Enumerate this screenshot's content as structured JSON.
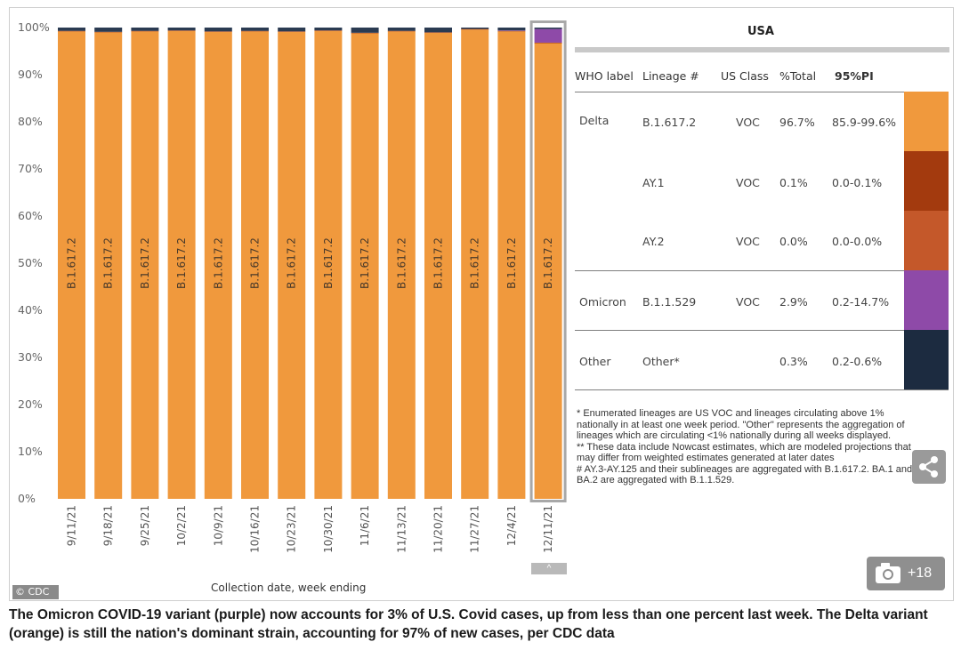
{
  "chart_data": {
    "type": "bar",
    "stacked": true,
    "categories": [
      "9/11/21",
      "9/18/21",
      "9/25/21",
      "10/2/21",
      "10/9/21",
      "10/16/21",
      "10/23/21",
      "10/30/21",
      "11/6/21",
      "11/13/21",
      "11/20/21",
      "11/27/21",
      "12/4/21",
      "12/11/21"
    ],
    "series": [
      {
        "name": "B.1.617.2",
        "color": "#f0993d",
        "values": [
          99.2,
          99.0,
          99.2,
          99.3,
          99.1,
          99.2,
          99.1,
          99.3,
          98.8,
          99.2,
          98.9,
          99.6,
          99.2,
          96.7
        ]
      },
      {
        "name": "AY.1",
        "color": "#a33a0e",
        "values": [
          0.1,
          0.1,
          0.1,
          0.1,
          0.1,
          0.1,
          0.1,
          0.1,
          0.1,
          0.1,
          0.1,
          0.1,
          0.1,
          0.1
        ]
      },
      {
        "name": "AY.2",
        "color": "#c4582a",
        "values": [
          0.0,
          0.0,
          0.0,
          0.0,
          0.0,
          0.0,
          0.0,
          0.0,
          0.0,
          0.0,
          0.0,
          0.0,
          0.0,
          0.0
        ]
      },
      {
        "name": "B.1.1.529",
        "color": "#8e4aa8",
        "values": [
          0,
          0,
          0,
          0,
          0,
          0,
          0,
          0,
          0,
          0,
          0,
          0,
          0.1,
          2.9
        ]
      },
      {
        "name": "Other",
        "color": "#2b3b52",
        "values": [
          0.7,
          0.9,
          0.7,
          0.6,
          0.8,
          0.7,
          0.8,
          0.6,
          1.1,
          0.7,
          1.0,
          0.3,
          0.6,
          0.3
        ]
      }
    ],
    "bar_label": "B.1.617.2",
    "highlighted_category": "12/11/21",
    "yticks": [
      "0%",
      "10%",
      "20%",
      "30%",
      "40%",
      "50%",
      "60%",
      "70%",
      "80%",
      "90%",
      "100%"
    ],
    "ylim": [
      0,
      100
    ],
    "xlabel": "Collection date, week ending",
    "ylabel": ""
  },
  "table": {
    "title": "USA",
    "headers": [
      "WHO label",
      "Lineage #",
      "US Class",
      "%Total",
      "95%PI"
    ],
    "rows": [
      {
        "who": "Delta",
        "lineage": "B.1.617.2",
        "class": "VOC",
        "total": "96.7%",
        "pi": "85.9-99.6%",
        "color": "#f0993d"
      },
      {
        "who": "",
        "lineage": "AY.1",
        "class": "VOC",
        "total": "0.1%",
        "pi": "0.0-0.1%",
        "color": "#a33a0e"
      },
      {
        "who": "",
        "lineage": "AY.2",
        "class": "VOC",
        "total": "0.0%",
        "pi": "0.0-0.0%",
        "color": "#c4582a"
      },
      {
        "who": "Omicron",
        "lineage": "B.1.1.529",
        "class": "VOC",
        "total": "2.9%",
        "pi": "0.2-14.7%",
        "color": "#8e4aa8"
      },
      {
        "who": "Other",
        "lineage": "Other*",
        "class": "",
        "total": "0.3%",
        "pi": "0.2-0.6%",
        "color": "#1c2b40"
      }
    ]
  },
  "notes": [
    "*      Enumerated lineages are US VOC and lineages circulating above 1% nationally in at least one week period. \"Other\" represents the aggregation of lineages which are circulating <1% nationally during all weeks displayed.",
    "**     These data include Nowcast estimates, which are modeled projections that may differ from weighted estimates generated at later dates",
    "#      AY.3-AY.125 and their sublineages are aggregated with B.1.617.2. BA.1 and BA.2 are aggregated with B.1.1.529."
  ],
  "credit": "© CDC",
  "scroll_glyph": "^",
  "gallery": {
    "count": "+18",
    "icon": "camera-icon"
  },
  "share_icon": "share-icon",
  "caption": "The Omicron COVID-19 variant (purple) now accounts for 3% of U.S. Covid cases, up from less than one percent last week. The Delta variant (orange) is still the nation's dominant strain, accounting for 97% of new cases, per CDC data"
}
